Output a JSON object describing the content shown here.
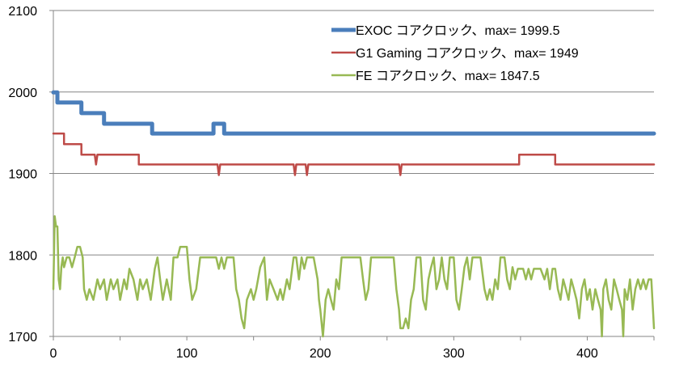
{
  "chart_data": {
    "type": "line",
    "title": "",
    "xlabel": "",
    "ylabel": "",
    "xlim": [
      0,
      450
    ],
    "ylim": [
      1700,
      2100
    ],
    "x_ticks": [
      0,
      100,
      200,
      300,
      400
    ],
    "y_ticks": [
      1700,
      1800,
      1900,
      2000,
      2100
    ],
    "grid": "horizontal",
    "legend_position": "top-right",
    "series": [
      {
        "name": "EXOC コアクロック、max=  1999.5",
        "color": "#4a7ebb",
        "width": 5,
        "points": [
          [
            0,
            1999.5
          ],
          [
            3,
            1999.5
          ],
          [
            3,
            1987
          ],
          [
            21,
            1987
          ],
          [
            21,
            1974
          ],
          [
            38,
            1974
          ],
          [
            38,
            1961
          ],
          [
            74,
            1961
          ],
          [
            74,
            1949
          ],
          [
            120,
            1949
          ],
          [
            120,
            1961
          ],
          [
            128,
            1961
          ],
          [
            128,
            1949
          ],
          [
            450,
            1949
          ]
        ]
      },
      {
        "name": "G1 Gaming コアクロック、max= 1949",
        "color": "#be4b48",
        "width": 2.5,
        "points": [
          [
            0,
            1949
          ],
          [
            8,
            1949
          ],
          [
            8,
            1936
          ],
          [
            21,
            1936
          ],
          [
            21,
            1923
          ],
          [
            31,
            1923
          ],
          [
            32,
            1911
          ],
          [
            33,
            1923
          ],
          [
            64,
            1923
          ],
          [
            64,
            1911
          ],
          [
            123,
            1911
          ],
          [
            124,
            1898
          ],
          [
            125,
            1911
          ],
          [
            180,
            1911
          ],
          [
            181,
            1898
          ],
          [
            182,
            1911
          ],
          [
            189,
            1911
          ],
          [
            190,
            1898
          ],
          [
            191,
            1911
          ],
          [
            259,
            1911
          ],
          [
            260,
            1898
          ],
          [
            261,
            1911
          ],
          [
            349,
            1911
          ],
          [
            349,
            1923
          ],
          [
            376,
            1923
          ],
          [
            376,
            1911
          ],
          [
            450,
            1911
          ]
        ]
      },
      {
        "name": "FE コアクロック、max=  1847.5",
        "color": "#98b954",
        "width": 2.5,
        "points": [
          [
            0,
            1758
          ],
          [
            1,
            1847.5
          ],
          [
            2,
            1835
          ],
          [
            3,
            1835
          ],
          [
            4,
            1770
          ],
          [
            5,
            1758
          ],
          [
            6,
            1785
          ],
          [
            7,
            1797
          ],
          [
            8,
            1785
          ],
          [
            10,
            1797
          ],
          [
            12,
            1797
          ],
          [
            14,
            1785
          ],
          [
            16,
            1797
          ],
          [
            18,
            1810
          ],
          [
            20,
            1810
          ],
          [
            22,
            1797
          ],
          [
            23,
            1758
          ],
          [
            25,
            1745
          ],
          [
            27,
            1758
          ],
          [
            30,
            1745
          ],
          [
            33,
            1770
          ],
          [
            35,
            1758
          ],
          [
            38,
            1770
          ],
          [
            40,
            1745
          ],
          [
            43,
            1770
          ],
          [
            45,
            1758
          ],
          [
            48,
            1770
          ],
          [
            50,
            1745
          ],
          [
            53,
            1770
          ],
          [
            55,
            1758
          ],
          [
            57,
            1783
          ],
          [
            60,
            1770
          ],
          [
            63,
            1745
          ],
          [
            65,
            1770
          ],
          [
            67,
            1758
          ],
          [
            70,
            1770
          ],
          [
            73,
            1745
          ],
          [
            76,
            1783
          ],
          [
            78,
            1797
          ],
          [
            80,
            1770
          ],
          [
            82,
            1745
          ],
          [
            85,
            1770
          ],
          [
            88,
            1745
          ],
          [
            90,
            1797
          ],
          [
            93,
            1797
          ],
          [
            95,
            1810
          ],
          [
            100,
            1810
          ],
          [
            102,
            1770
          ],
          [
            104,
            1745
          ],
          [
            107,
            1758
          ],
          [
            110,
            1797
          ],
          [
            115,
            1797
          ],
          [
            120,
            1797
          ],
          [
            122,
            1797
          ],
          [
            124,
            1783
          ],
          [
            126,
            1797
          ],
          [
            128,
            1783
          ],
          [
            130,
            1797
          ],
          [
            135,
            1797
          ],
          [
            137,
            1758
          ],
          [
            139,
            1745
          ],
          [
            141,
            1722
          ],
          [
            143,
            1710
          ],
          [
            145,
            1745
          ],
          [
            148,
            1758
          ],
          [
            150,
            1745
          ],
          [
            152,
            1758
          ],
          [
            155,
            1785
          ],
          [
            158,
            1797
          ],
          [
            160,
            1745
          ],
          [
            162,
            1770
          ],
          [
            165,
            1758
          ],
          [
            168,
            1745
          ],
          [
            170,
            1758
          ],
          [
            172,
            1745
          ],
          [
            175,
            1770
          ],
          [
            177,
            1758
          ],
          [
            180,
            1797
          ],
          [
            182,
            1797
          ],
          [
            184,
            1770
          ],
          [
            186,
            1797
          ],
          [
            188,
            1783
          ],
          [
            190,
            1797
          ],
          [
            195,
            1797
          ],
          [
            198,
            1770
          ],
          [
            199,
            1745
          ],
          [
            200,
            1733
          ],
          [
            202,
            1700
          ],
          [
            204,
            1745
          ],
          [
            206,
            1758
          ],
          [
            208,
            1745
          ],
          [
            210,
            1733
          ],
          [
            212,
            1770
          ],
          [
            214,
            1758
          ],
          [
            216,
            1797
          ],
          [
            220,
            1797
          ],
          [
            225,
            1797
          ],
          [
            230,
            1797
          ],
          [
            232,
            1770
          ],
          [
            234,
            1745
          ],
          [
            236,
            1758
          ],
          [
            238,
            1797
          ],
          [
            245,
            1797
          ],
          [
            250,
            1797
          ],
          [
            255,
            1797
          ],
          [
            257,
            1758
          ],
          [
            259,
            1733
          ],
          [
            260,
            1710
          ],
          [
            262,
            1710
          ],
          [
            264,
            1722
          ],
          [
            266,
            1710
          ],
          [
            268,
            1745
          ],
          [
            270,
            1758
          ],
          [
            272,
            1797
          ],
          [
            275,
            1797
          ],
          [
            277,
            1745
          ],
          [
            279,
            1733
          ],
          [
            281,
            1770
          ],
          [
            283,
            1785
          ],
          [
            285,
            1797
          ],
          [
            287,
            1758
          ],
          [
            289,
            1770
          ],
          [
            291,
            1797
          ],
          [
            293,
            1770
          ],
          [
            295,
            1758
          ],
          [
            297,
            1797
          ],
          [
            300,
            1797
          ],
          [
            302,
            1745
          ],
          [
            304,
            1733
          ],
          [
            306,
            1758
          ],
          [
            308,
            1785
          ],
          [
            310,
            1797
          ],
          [
            312,
            1770
          ],
          [
            314,
            1797
          ],
          [
            318,
            1797
          ],
          [
            320,
            1797
          ],
          [
            323,
            1758
          ],
          [
            325,
            1745
          ],
          [
            327,
            1758
          ],
          [
            329,
            1745
          ],
          [
            331,
            1770
          ],
          [
            333,
            1758
          ],
          [
            335,
            1797
          ],
          [
            338,
            1797
          ],
          [
            340,
            1770
          ],
          [
            342,
            1758
          ],
          [
            344,
            1785
          ],
          [
            346,
            1770
          ],
          [
            348,
            1783
          ],
          [
            352,
            1783
          ],
          [
            354,
            1770
          ],
          [
            356,
            1783
          ],
          [
            358,
            1770
          ],
          [
            360,
            1783
          ],
          [
            365,
            1783
          ],
          [
            368,
            1770
          ],
          [
            370,
            1783
          ],
          [
            372,
            1758
          ],
          [
            374,
            1783
          ],
          [
            376,
            1783
          ],
          [
            378,
            1758
          ],
          [
            380,
            1745
          ],
          [
            382,
            1770
          ],
          [
            384,
            1758
          ],
          [
            386,
            1745
          ],
          [
            388,
            1770
          ],
          [
            390,
            1758
          ],
          [
            392,
            1745
          ],
          [
            394,
            1722
          ],
          [
            396,
            1758
          ],
          [
            398,
            1770
          ],
          [
            400,
            1745
          ],
          [
            402,
            1758
          ],
          [
            404,
            1733
          ],
          [
            406,
            1758
          ],
          [
            408,
            1745
          ],
          [
            410,
            1733
          ],
          [
            411,
            1700
          ],
          [
            412,
            1758
          ],
          [
            414,
            1770
          ],
          [
            416,
            1745
          ],
          [
            418,
            1733
          ],
          [
            420,
            1770
          ],
          [
            422,
            1758
          ],
          [
            424,
            1745
          ],
          [
            426,
            1733
          ],
          [
            427,
            1700
          ],
          [
            428,
            1758
          ],
          [
            430,
            1745
          ],
          [
            432,
            1770
          ],
          [
            434,
            1733
          ],
          [
            436,
            1758
          ],
          [
            438,
            1770
          ],
          [
            440,
            1758
          ],
          [
            442,
            1770
          ],
          [
            444,
            1758
          ],
          [
            446,
            1770
          ],
          [
            448,
            1770
          ],
          [
            450,
            1710
          ]
        ]
      }
    ]
  }
}
